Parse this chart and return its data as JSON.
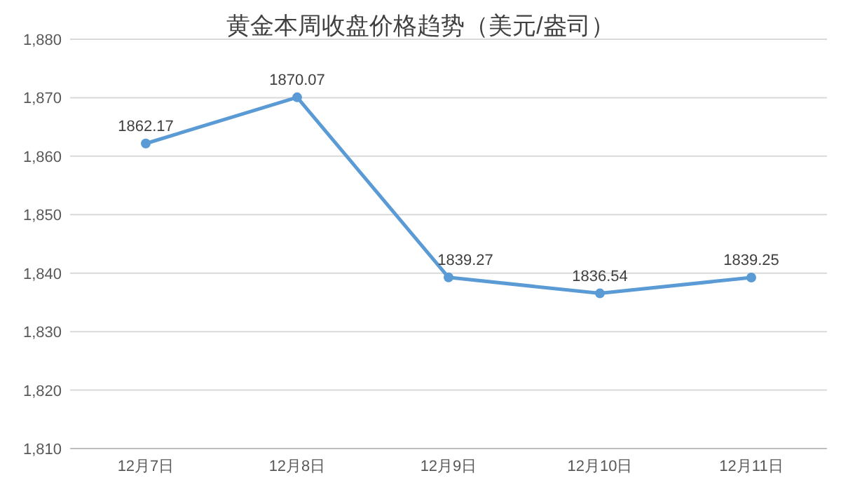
{
  "chart_data": {
    "type": "line",
    "title": "黄金本周收盘价格趋势（美元/盎司）",
    "categories": [
      "12月7日",
      "12月8日",
      "12月9日",
      "12月10日",
      "12月11日"
    ],
    "series": [
      {
        "color": "#5b9bd5",
        "values": [
          1862.17,
          1870.07,
          1839.27,
          1836.54,
          1839.25
        ]
      }
    ],
    "ylim": [
      1810,
      1880
    ],
    "yticks": [
      {
        "value": 1810,
        "label": "1,810"
      },
      {
        "value": 1820,
        "label": "1,820"
      },
      {
        "value": 1830,
        "label": "1,830"
      },
      {
        "value": 1840,
        "label": "1,840"
      },
      {
        "value": 1850,
        "label": "1,850"
      },
      {
        "value": 1860,
        "label": "1,860"
      },
      {
        "value": 1870,
        "label": "1,870"
      },
      {
        "value": 1880,
        "label": "1,880"
      }
    ],
    "grid": "y",
    "marker": "circle",
    "line_style": "solid",
    "data_labels": true
  }
}
